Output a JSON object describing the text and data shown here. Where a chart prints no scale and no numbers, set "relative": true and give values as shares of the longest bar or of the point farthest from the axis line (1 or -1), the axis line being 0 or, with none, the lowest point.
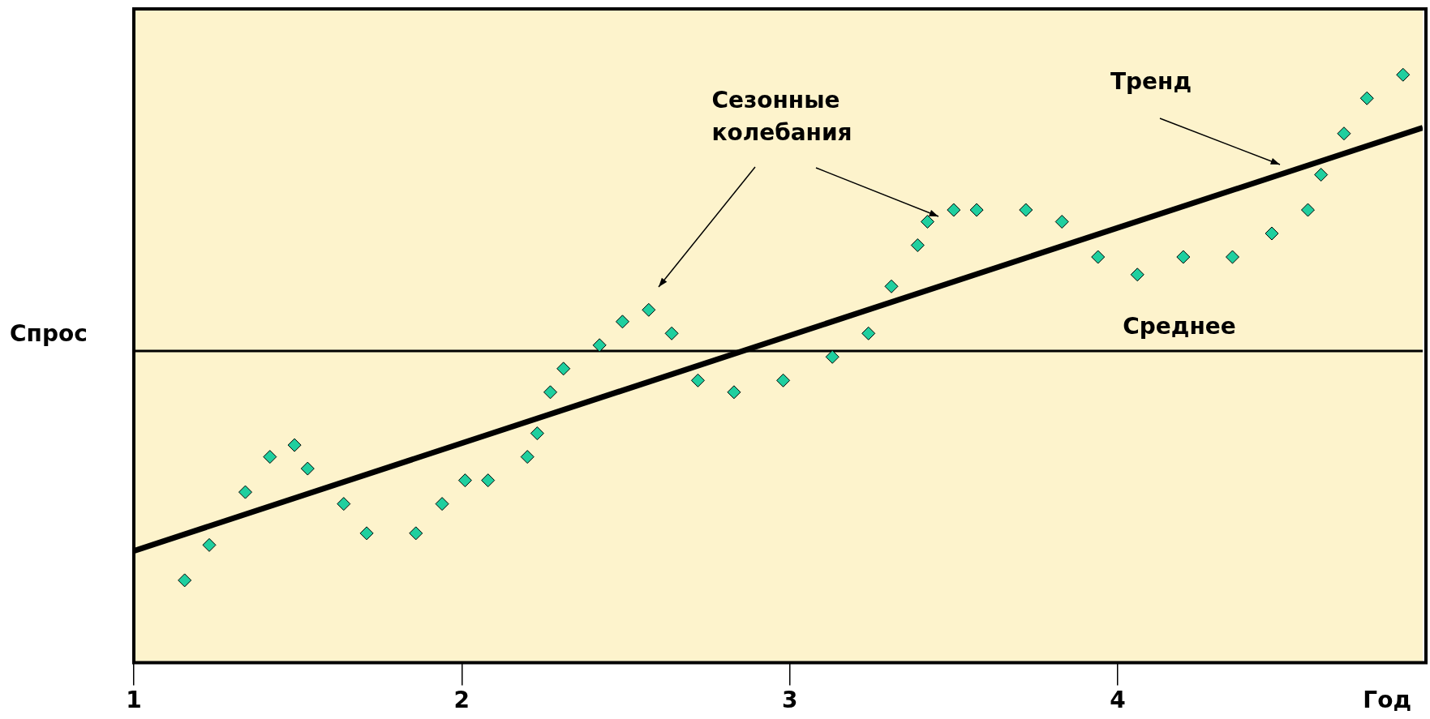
{
  "chart_data": {
    "type": "scatter",
    "xlabel": "Год",
    "ylabel": "Спрос",
    "relative": true,
    "xlim": [
      1,
      4.93
    ],
    "xticks": [
      1,
      2,
      3,
      4
    ],
    "series": [
      {
        "color": "#1fcf9f",
        "marker": "diamond",
        "x": [
          1.155,
          1.23,
          1.34,
          1.415,
          1.49,
          1.53,
          1.64,
          1.71,
          1.86,
          1.94,
          2.01,
          2.08,
          2.2,
          2.23,
          2.27,
          2.31,
          2.42,
          2.49,
          2.57,
          2.64,
          2.72,
          2.83,
          2.98,
          3.13,
          3.24,
          3.31,
          3.39,
          3.42,
          3.5,
          3.57,
          3.72,
          3.83,
          3.94,
          4.06,
          4.2,
          4.35,
          4.47,
          4.58,
          4.62,
          4.69,
          4.76,
          4.87
        ],
        "values": [
          0.14,
          0.2,
          0.29,
          0.35,
          0.37,
          0.33,
          0.27,
          0.22,
          0.22,
          0.27,
          0.31,
          0.31,
          0.35,
          0.39,
          0.46,
          0.5,
          0.54,
          0.58,
          0.6,
          0.56,
          0.48,
          0.46,
          0.48,
          0.52,
          0.56,
          0.64,
          0.71,
          0.75,
          0.77,
          0.77,
          0.77,
          0.75,
          0.69,
          0.66,
          0.69,
          0.69,
          0.73,
          0.77,
          0.83,
          0.9,
          0.96,
          1
        ]
      },
      {
        "type": "line",
        "color": "#000000",
        "x": [
          1,
          4.93
        ],
        "values": [
          0.19,
          0.91
        ]
      }
    ],
    "ref_lines": [
      {
        "axis": "y",
        "value": 0.53,
        "label": "Среднее",
        "color": "#000000"
      }
    ],
    "annotations": [
      "Сезонные колебания",
      "Тренд"
    ]
  }
}
